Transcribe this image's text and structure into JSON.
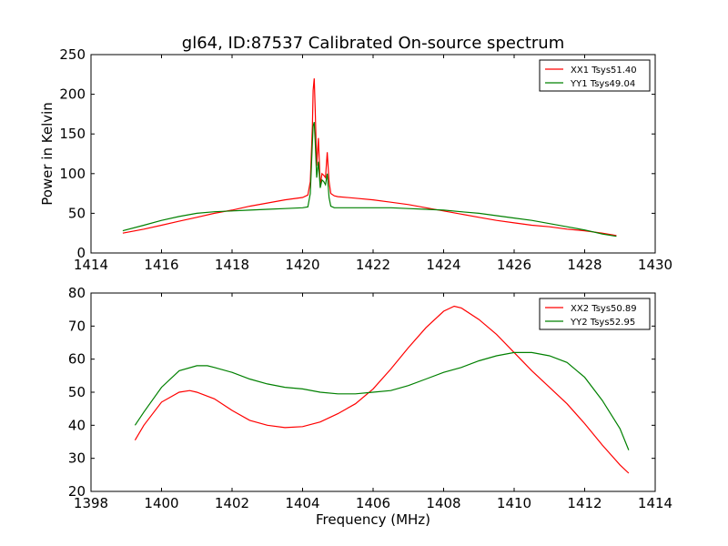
{
  "chart_data": [
    {
      "type": "line",
      "title": "gl64, ID:87537 Calibrated On-source spectrum",
      "xlabel": "",
      "ylabel": "Power in Kelvin",
      "xlim": [
        1414,
        1430
      ],
      "ylim": [
        0,
        250
      ],
      "xticks": [
        1414,
        1416,
        1418,
        1420,
        1422,
        1424,
        1426,
        1428,
        1430
      ],
      "yticks": [
        0,
        50,
        100,
        150,
        200,
        250
      ],
      "grid": false,
      "legend_position": "top-right",
      "series": [
        {
          "name": "XX1 Tsys51.40",
          "color": "#ff0000",
          "x": [
            1414.9,
            1415.5,
            1416.0,
            1416.5,
            1417.0,
            1417.5,
            1418.0,
            1418.5,
            1419.0,
            1419.5,
            1420.0,
            1420.15,
            1420.22,
            1420.28,
            1420.3,
            1420.33,
            1420.36,
            1420.4,
            1420.45,
            1420.5,
            1420.55,
            1420.6,
            1420.65,
            1420.7,
            1420.75,
            1420.8,
            1420.9,
            1421.0,
            1421.5,
            1422.0,
            1422.5,
            1423.0,
            1423.5,
            1424.0,
            1424.5,
            1425.0,
            1425.5,
            1426.0,
            1426.5,
            1427.0,
            1427.5,
            1428.0,
            1428.5,
            1428.9
          ],
          "y": [
            25,
            30,
            35,
            40,
            45,
            50,
            54,
            59,
            63,
            67,
            70,
            73,
            90,
            160,
            205,
            220,
            180,
            110,
            145,
            85,
            100,
            98,
            95,
            127,
            90,
            75,
            72,
            71,
            69,
            67,
            64,
            61,
            57,
            53,
            49,
            45,
            41,
            38,
            35,
            33,
            30,
            28,
            25,
            22
          ]
        },
        {
          "name": "YY1 Tsys49.04",
          "color": "#008000",
          "x": [
            1414.9,
            1415.5,
            1416.0,
            1416.5,
            1417.0,
            1417.5,
            1418.0,
            1418.5,
            1419.0,
            1419.5,
            1420.0,
            1420.15,
            1420.22,
            1420.28,
            1420.3,
            1420.33,
            1420.36,
            1420.4,
            1420.45,
            1420.5,
            1420.55,
            1420.6,
            1420.65,
            1420.7,
            1420.75,
            1420.8,
            1420.9,
            1421.0,
            1421.5,
            1422.0,
            1422.5,
            1423.0,
            1423.5,
            1424.0,
            1424.5,
            1425.0,
            1425.5,
            1426.0,
            1426.5,
            1427.0,
            1427.5,
            1428.0,
            1428.5,
            1428.9
          ],
          "y": [
            28,
            35,
            41,
            46,
            50,
            52,
            53,
            54,
            55,
            56,
            57,
            58,
            75,
            140,
            160,
            165,
            140,
            95,
            115,
            82,
            92,
            90,
            86,
            100,
            70,
            59,
            57,
            57,
            57,
            57,
            57,
            56,
            55,
            54,
            52,
            50,
            47,
            44,
            41,
            37,
            33,
            29,
            24,
            21
          ]
        }
      ]
    },
    {
      "type": "line",
      "title": "",
      "xlabel": "Frequency (MHz)",
      "ylabel": "",
      "xlim": [
        1398,
        1414
      ],
      "ylim": [
        20,
        80
      ],
      "xticks": [
        1398,
        1400,
        1402,
        1404,
        1406,
        1408,
        1410,
        1412,
        1414
      ],
      "yticks": [
        20,
        30,
        40,
        50,
        60,
        70,
        80
      ],
      "grid": false,
      "legend_position": "top-right",
      "series": [
        {
          "name": "XX2 Tsys50.89",
          "color": "#ff0000",
          "x": [
            1399.25,
            1399.5,
            1400.0,
            1400.5,
            1400.8,
            1401.0,
            1401.5,
            1402.0,
            1402.5,
            1403.0,
            1403.5,
            1404.0,
            1404.5,
            1405.0,
            1405.5,
            1406.0,
            1406.5,
            1407.0,
            1407.5,
            1408.0,
            1408.3,
            1408.5,
            1409.0,
            1409.5,
            1410.0,
            1410.5,
            1411.0,
            1411.5,
            1412.0,
            1412.5,
            1413.0,
            1413.25
          ],
          "y": [
            35.5,
            40,
            47,
            50,
            50.5,
            50,
            48,
            44.5,
            41.5,
            40,
            39.3,
            39.6,
            41,
            43.5,
            46.5,
            51,
            57,
            63.5,
            69.5,
            74.5,
            76,
            75.5,
            72,
            67.5,
            62,
            56.5,
            51.5,
            46.5,
            40.5,
            34,
            28,
            25.5
          ]
        },
        {
          "name": "YY2 Tsys52.95",
          "color": "#008000",
          "x": [
            1399.25,
            1399.5,
            1400.0,
            1400.5,
            1401.0,
            1401.3,
            1401.5,
            1402.0,
            1402.5,
            1403.0,
            1403.5,
            1404.0,
            1404.5,
            1405.0,
            1405.5,
            1406.0,
            1406.5,
            1407.0,
            1407.5,
            1408.0,
            1408.5,
            1409.0,
            1409.5,
            1410.0,
            1410.5,
            1411.0,
            1411.5,
            1412.0,
            1412.5,
            1413.0,
            1413.25
          ],
          "y": [
            40,
            44,
            51.5,
            56.5,
            58,
            58,
            57.5,
            56,
            54,
            52.5,
            51.5,
            51,
            50,
            49.5,
            49.5,
            50,
            50.5,
            52,
            54,
            56,
            57.5,
            59.5,
            61,
            62,
            62,
            61,
            59,
            54.5,
            47.5,
            39,
            32.5
          ]
        }
      ]
    }
  ]
}
